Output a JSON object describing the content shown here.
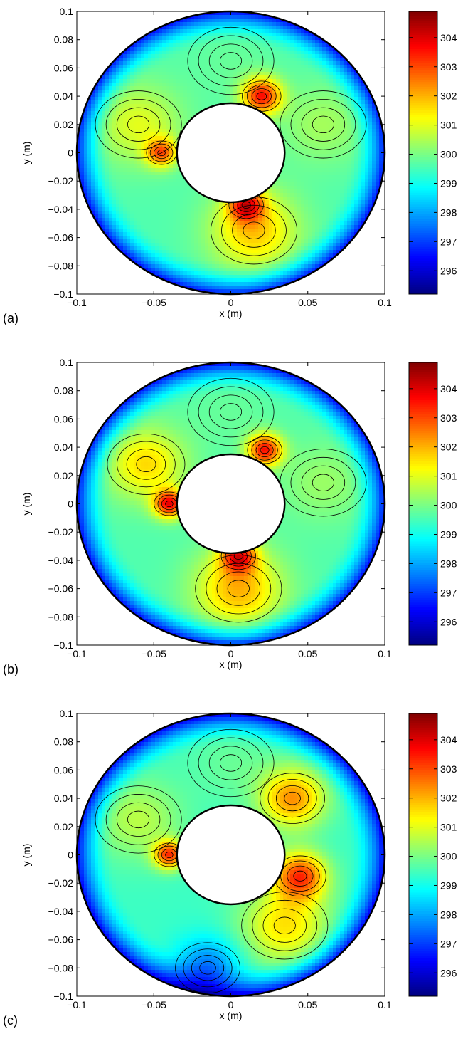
{
  "chart_data": [
    {
      "type": "heatmap",
      "panel_label": "(a)",
      "xlabel": "x (m)",
      "ylabel": "y (m)",
      "xlim": [
        -0.1,
        0.1
      ],
      "ylim": [
        -0.1,
        0.1
      ],
      "x_ticks": [
        -0.1,
        -0.05,
        0,
        0.05,
        0.1
      ],
      "x_tick_labels": [
        "−0.1",
        "−0.05",
        "0",
        "0.05",
        "0.1"
      ],
      "y_ticks": [
        -0.1,
        -0.08,
        -0.06,
        -0.04,
        -0.02,
        0,
        0.02,
        0.04,
        0.06,
        0.08,
        0.1
      ],
      "y_tick_labels": [
        "−0.1",
        "−0.08",
        "−0.06",
        "−0.04",
        "−0.02",
        "0",
        "0.02",
        "0.04",
        "0.06",
        "0.08",
        "0.1"
      ],
      "colorbar": {
        "range": [
          295.2,
          304.9
        ],
        "ticks": [
          296,
          297,
          298,
          299,
          300,
          301,
          302,
          303,
          304
        ],
        "tick_labels": [
          "296",
          "297",
          "298",
          "299",
          "300",
          "301",
          "302",
          "303",
          "304"
        ]
      },
      "annulus": {
        "inner_radius": 0.035,
        "outer_radius": 0.1
      },
      "base_value": 299.6,
      "hotspots": [
        {
          "x": 0.015,
          "y": -0.055,
          "value": 301.8,
          "spread": 0.02
        },
        {
          "x": 0.02,
          "y": 0.04,
          "value": 303.5,
          "spread": 0.009
        },
        {
          "x": 0.01,
          "y": -0.037,
          "value": 303.0,
          "spread": 0.008
        },
        {
          "x": -0.045,
          "y": 0.0,
          "value": 302.5,
          "spread": 0.007
        },
        {
          "x": -0.06,
          "y": 0.02,
          "value": 301.0,
          "spread": 0.02
        },
        {
          "x": 0.06,
          "y": 0.02,
          "value": 300.4,
          "spread": 0.02
        },
        {
          "x": 0.0,
          "y": 0.065,
          "value": 299.8,
          "spread": 0.02
        }
      ]
    },
    {
      "type": "heatmap",
      "panel_label": "(b)",
      "xlabel": "x (m)",
      "ylabel": "y (m)",
      "xlim": [
        -0.1,
        0.1
      ],
      "ylim": [
        -0.1,
        0.1
      ],
      "x_ticks": [
        -0.1,
        -0.05,
        0,
        0.05,
        0.1
      ],
      "x_tick_labels": [
        "−0.1",
        "−0.05",
        "0",
        "0.05",
        "0.1"
      ],
      "y_ticks": [
        -0.1,
        -0.08,
        -0.06,
        -0.04,
        -0.02,
        0,
        0.02,
        0.04,
        0.06,
        0.08,
        0.1
      ],
      "y_tick_labels": [
        "−0.1",
        "−0.08",
        "−0.06",
        "−0.04",
        "−0.02",
        "0",
        "0.02",
        "0.04",
        "0.06",
        "0.08",
        "0.1"
      ],
      "colorbar": {
        "range": [
          295.2,
          304.9
        ],
        "ticks": [
          296,
          297,
          298,
          299,
          300,
          301,
          302,
          303,
          304
        ],
        "tick_labels": [
          "296",
          "297",
          "298",
          "299",
          "300",
          "301",
          "302",
          "303",
          "304"
        ]
      },
      "annulus": {
        "inner_radius": 0.035,
        "outer_radius": 0.1
      },
      "base_value": 299.6,
      "hotspots": [
        {
          "x": 0.005,
          "y": -0.06,
          "value": 302.0,
          "spread": 0.02
        },
        {
          "x": -0.055,
          "y": 0.028,
          "value": 301.6,
          "spread": 0.018
        },
        {
          "x": -0.04,
          "y": 0.0,
          "value": 303.5,
          "spread": 0.007
        },
        {
          "x": 0.022,
          "y": 0.038,
          "value": 303.5,
          "spread": 0.008
        },
        {
          "x": 0.005,
          "y": -0.037,
          "value": 303.0,
          "spread": 0.008
        },
        {
          "x": 0.06,
          "y": 0.015,
          "value": 300.3,
          "spread": 0.02
        },
        {
          "x": 0.0,
          "y": 0.065,
          "value": 299.8,
          "spread": 0.02
        }
      ]
    },
    {
      "type": "heatmap",
      "panel_label": "(c)",
      "xlabel": "x (m)",
      "ylabel": "y (m)",
      "xlim": [
        -0.1,
        0.1
      ],
      "ylim": [
        -0.1,
        0.1
      ],
      "x_ticks": [
        -0.1,
        -0.05,
        0,
        0.05,
        0.1
      ],
      "x_tick_labels": [
        "−0.1",
        "−0.05",
        "0",
        "0.05",
        "0.1"
      ],
      "y_ticks": [
        -0.1,
        -0.08,
        -0.06,
        -0.04,
        -0.02,
        0,
        0.02,
        0.04,
        0.06,
        0.08,
        0.1
      ],
      "y_tick_labels": [
        "−0.1",
        "−0.08",
        "−0.06",
        "−0.04",
        "−0.02",
        "0",
        "0.02",
        "0.04",
        "0.06",
        "0.08",
        "0.1"
      ],
      "colorbar": {
        "range": [
          295.2,
          304.9
        ],
        "ticks": [
          296,
          297,
          298,
          299,
          300,
          301,
          302,
          303,
          304
        ],
        "tick_labels": [
          "296",
          "297",
          "298",
          "299",
          "300",
          "301",
          "302",
          "303",
          "304"
        ]
      },
      "annulus": {
        "inner_radius": 0.035,
        "outer_radius": 0.1
      },
      "base_value": 299.4,
      "hotspots": [
        {
          "x": 0.045,
          "y": -0.015,
          "value": 303.0,
          "spread": 0.012
        },
        {
          "x": 0.04,
          "y": 0.04,
          "value": 302.3,
          "spread": 0.015
        },
        {
          "x": 0.035,
          "y": -0.05,
          "value": 301.5,
          "spread": 0.02
        },
        {
          "x": -0.04,
          "y": 0.0,
          "value": 303.0,
          "spread": 0.007
        },
        {
          "x": -0.06,
          "y": 0.025,
          "value": 300.6,
          "spread": 0.02
        },
        {
          "x": 0.0,
          "y": 0.065,
          "value": 299.8,
          "spread": 0.02
        },
        {
          "x": -0.015,
          "y": -0.08,
          "value": 297.5,
          "spread": 0.015
        }
      ]
    }
  ]
}
